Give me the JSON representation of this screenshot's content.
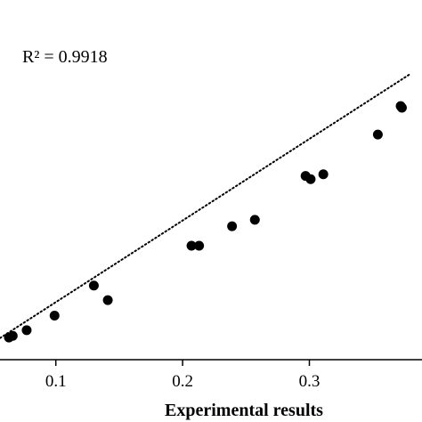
{
  "chart_data": {
    "type": "scatter",
    "xlabel": "Experimental results",
    "ylabel": "",
    "title": "",
    "annotation": "R² = 0.9918",
    "xlim": [
      0.0,
      0.38
    ],
    "ylim": [
      0.0,
      0.42
    ],
    "x_ticks": [
      {
        "value": 0.1,
        "label": "0.1"
      },
      {
        "value": 0.2,
        "label": "0.2"
      },
      {
        "value": 0.3,
        "label": "0.3"
      }
    ],
    "trendline": {
      "style": "dotted",
      "x": [
        0.055,
        0.38
      ],
      "y": [
        0.056,
        0.383
      ]
    },
    "series": [
      {
        "x": [
          0.063,
          0.066,
          0.077,
          0.099,
          0.13,
          0.141,
          0.207,
          0.213,
          0.239,
          0.257,
          0.297,
          0.301,
          0.311,
          0.354,
          0.372,
          0.373
        ],
        "y": [
          0.058,
          0.06,
          0.067,
          0.085,
          0.122,
          0.104,
          0.171,
          0.171,
          0.195,
          0.203,
          0.257,
          0.253,
          0.259,
          0.308,
          0.343,
          0.341
        ]
      }
    ],
    "marker_color": "#000000",
    "grid": false
  }
}
